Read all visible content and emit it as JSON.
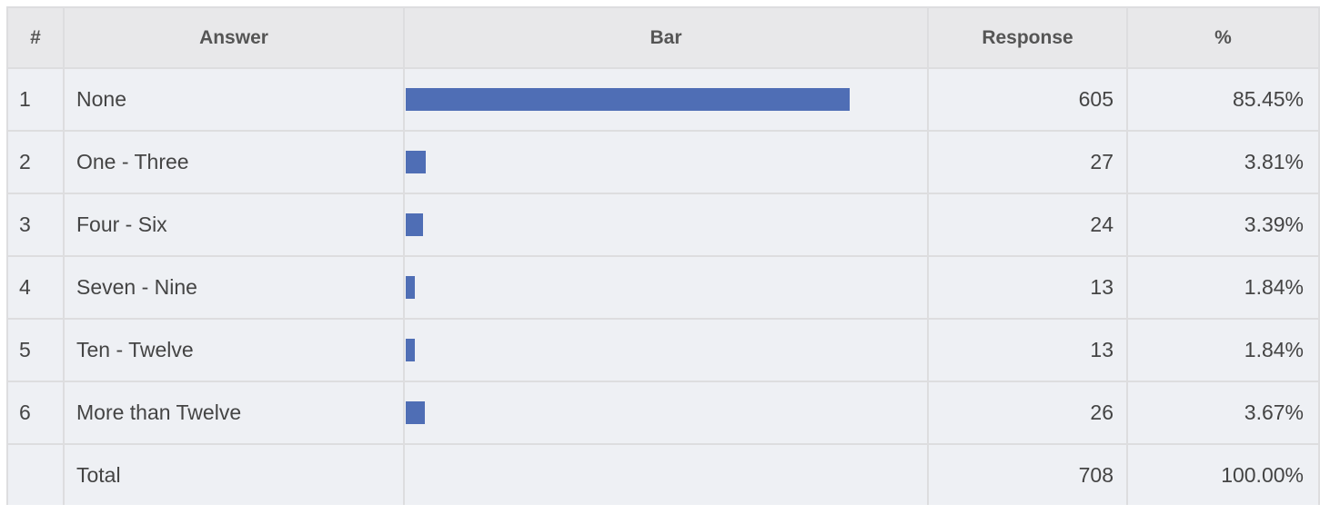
{
  "table": {
    "headers": {
      "num": "#",
      "answer": "Answer",
      "bar": "Bar",
      "response": "Response",
      "percent": "%"
    },
    "total": {
      "label": "Total",
      "response": "708",
      "percent": "100.00%"
    }
  },
  "colors": {
    "bar": "#4f6eb5",
    "header_bg": "#e8e8ea",
    "row_bg": "#eef0f4"
  },
  "chart_data": {
    "type": "bar",
    "orientation": "horizontal",
    "categories": [
      "None",
      "One - Three",
      "Four - Six",
      "Seven - Nine",
      "Ten - Twelve",
      "More than Twelve"
    ],
    "row_numbers": [
      "1",
      "2",
      "3",
      "4",
      "5",
      "6"
    ],
    "values": [
      605,
      27,
      24,
      13,
      13,
      26
    ],
    "percentages": [
      "85.45%",
      "3.81%",
      "3.39%",
      "1.84%",
      "1.84%",
      "3.67%"
    ],
    "value_labels": [
      "605",
      "27",
      "24",
      "13",
      "13",
      "26"
    ],
    "total": 708
  }
}
